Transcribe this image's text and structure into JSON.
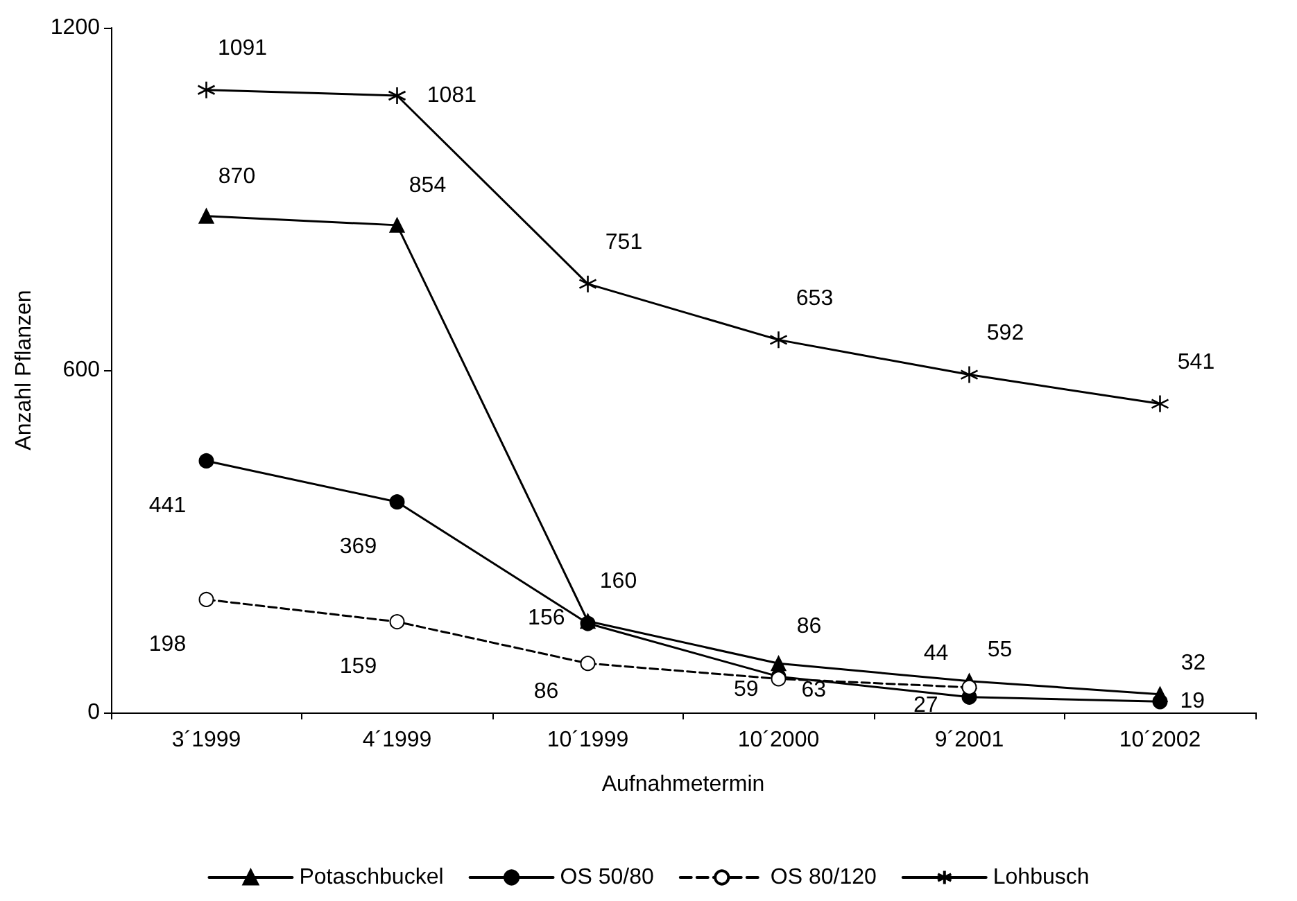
{
  "chart_data": {
    "type": "line",
    "xlabel": "Aufnahmetermin",
    "ylabel": "Anzahl Pflanzen",
    "categories": [
      "3´1999",
      "4´1999",
      "10´1999",
      "10´2000",
      "9´2001",
      "10´2002"
    ],
    "series": [
      {
        "name": "Potaschbuckel",
        "color": "#000000",
        "marker": "triangle",
        "line_style": "solid",
        "values": [
          870,
          854,
          160,
          86,
          55,
          32
        ]
      },
      {
        "name": "OS 50/80",
        "color": "#000000",
        "marker": "circle",
        "line_style": "solid",
        "values": [
          441,
          369,
          156,
          63,
          27,
          19
        ]
      },
      {
        "name": "OS 80/120",
        "color": "#000000",
        "marker": "circle",
        "line_style": "dashed",
        "values": [
          198,
          159,
          86,
          59,
          44,
          null
        ]
      },
      {
        "name": "Lohbusch",
        "color": "#000000",
        "marker": "cross",
        "line_style": "solid",
        "values": [
          1091,
          1081,
          751,
          653,
          592,
          541
        ]
      }
    ],
    "ylim": [
      0,
      1200
    ],
    "yticks": [
      0,
      600,
      1200
    ],
    "grid": false,
    "legend": "bottom",
    "data_labels": true
  }
}
